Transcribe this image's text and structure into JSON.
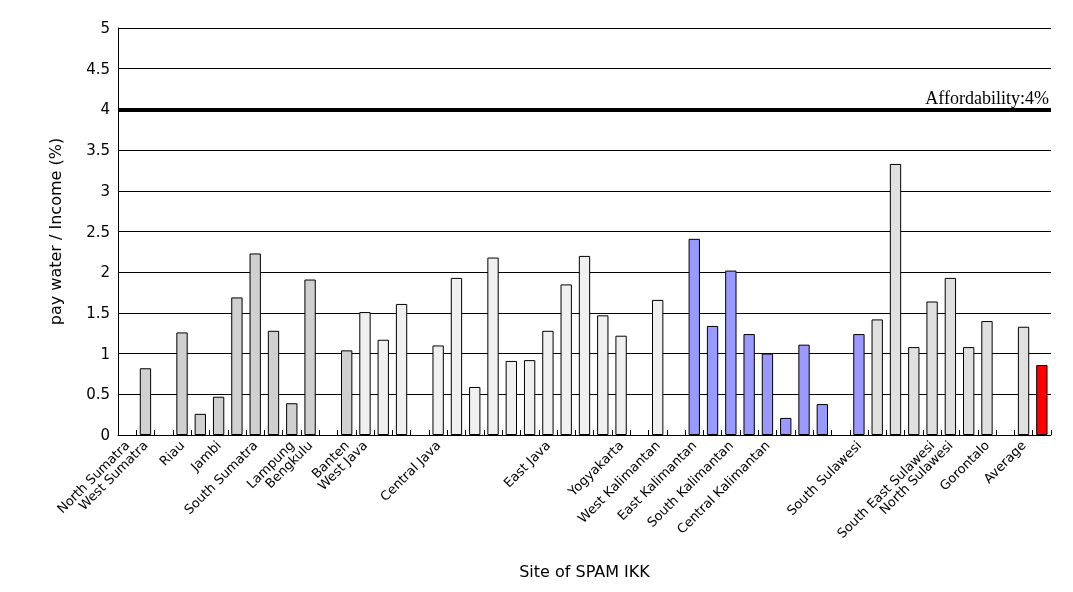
{
  "chart_data": {
    "type": "bar",
    "xlabel": "Site of SPAM IKK",
    "ylabel": "pay water / Income (%)",
    "categories": [
      "North Sumatra",
      "West Sumatra",
      null,
      "Riau",
      null,
      "Jambi",
      null,
      "South Sumatra",
      null,
      "Lampung",
      "Bengkulu",
      null,
      "Banten",
      "West Java",
      null,
      null,
      null,
      "Central Java",
      null,
      null,
      null,
      null,
      null,
      "East Java",
      null,
      null,
      null,
      "Yogyakarta",
      null,
      "West Kalimantan",
      null,
      "East Kalimantan",
      null,
      "South Kalimantan",
      null,
      "Central Kalimantan",
      null,
      null,
      null,
      null,
      "South Sulawesi",
      null,
      null,
      null,
      "South East Sulawesi",
      "North Sulawesi",
      null,
      "Gorontalo",
      null,
      "Average",
      null
    ],
    "values": [
      null,
      0.82,
      null,
      1.26,
      0.26,
      0.47,
      1.69,
      2.23,
      1.28,
      0.39,
      1.91,
      null,
      1.04,
      1.51,
      1.17,
      1.61,
      null,
      1.1,
      1.93,
      0.59,
      2.18,
      0.91,
      0.92,
      1.28,
      1.85,
      2.2,
      1.47,
      1.22,
      null,
      1.66,
      null,
      2.41,
      1.34,
      2.02,
      1.24,
      1.0,
      0.21,
      1.11,
      0.38,
      null,
      1.24,
      1.42,
      3.33,
      1.08,
      1.64,
      1.93,
      1.08,
      1.4,
      null,
      1.33,
      0.86
    ],
    "colors": [
      "#d0d0d0",
      "#d0d0d0",
      "#d0d0d0",
      "#d0d0d0",
      "#d0d0d0",
      "#d0d0d0",
      "#d0d0d0",
      "#d0d0d0",
      "#d0d0d0",
      "#d0d0d0",
      "#d0d0d0",
      "#d0d0d0",
      "#d0d0d0",
      "#f0f0f0",
      "#f0f0f0",
      "#f0f0f0",
      "#f0f0f0",
      "#f0f0f0",
      "#f0f0f0",
      "#f0f0f0",
      "#f0f0f0",
      "#f0f0f0",
      "#f0f0f0",
      "#f0f0f0",
      "#f0f0f0",
      "#f0f0f0",
      "#f0f0f0",
      "#f0f0f0",
      "#f0f0f0",
      "#f0f0f0",
      "#9999ff",
      "#9999ff",
      "#9999ff",
      "#9999ff",
      "#9999ff",
      "#9999ff",
      "#9999ff",
      "#9999ff",
      "#9999ff",
      "#9999ff",
      "#9999ff",
      "#e0e0e0",
      "#e0e0e0",
      "#e0e0e0",
      "#e0e0e0",
      "#e0e0e0",
      "#e0e0e0",
      "#e0e0e0",
      "#e0e0e0",
      "#e0e0e0",
      "#ff0000"
    ],
    "ylim": [
      0,
      5
    ],
    "yticks": [
      0,
      0.5,
      1,
      1.5,
      2,
      2.5,
      3,
      3.5,
      4,
      4.5,
      5
    ],
    "grid": "y",
    "ref_lines": [
      {
        "axis": "y",
        "value": 4,
        "label": "Affordability:4%",
        "color": "#000000"
      }
    ]
  }
}
